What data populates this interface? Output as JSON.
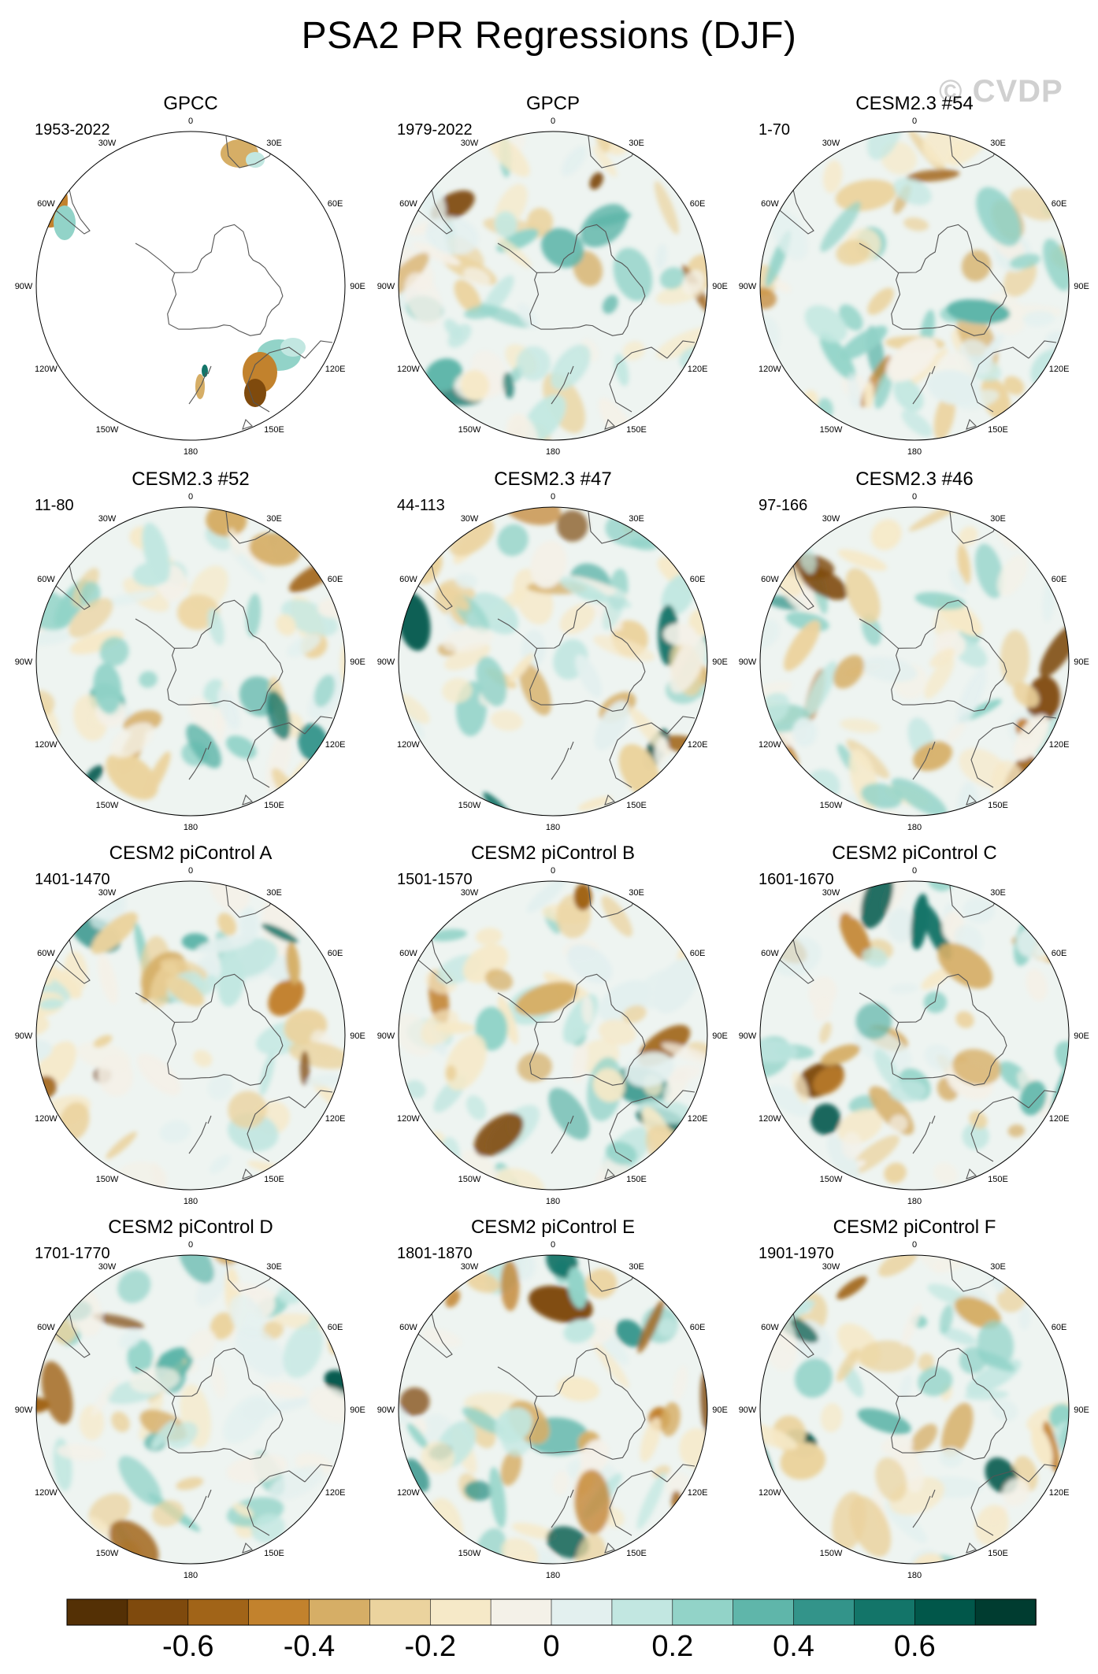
{
  "title": "PSA2 PR Regressions (DJF)",
  "watermark": "© CVDP",
  "lon_labels": [
    "0",
    "30E",
    "60E",
    "90E",
    "120E",
    "150E",
    "180",
    "150W",
    "120W",
    "90W",
    "60W",
    "30W"
  ],
  "panels": [
    {
      "title": "GPCC",
      "years": "1953-2022",
      "mode": "land"
    },
    {
      "title": "GPCP",
      "years": "1979-2022",
      "mode": "full"
    },
    {
      "title": "CESM2.3 #54",
      "years": "1-70",
      "mode": "full"
    },
    {
      "title": "CESM2.3 #52",
      "years": "11-80",
      "mode": "full"
    },
    {
      "title": "CESM2.3 #47",
      "years": "44-113",
      "mode": "full"
    },
    {
      "title": "CESM2.3 #46",
      "years": "97-166",
      "mode": "full"
    },
    {
      "title": "CESM2 piControl A",
      "years": "1401-1470",
      "mode": "full"
    },
    {
      "title": "CESM2 piControl B",
      "years": "1501-1570",
      "mode": "full"
    },
    {
      "title": "CESM2 piControl C",
      "years": "1601-1670",
      "mode": "full"
    },
    {
      "title": "CESM2 piControl D",
      "years": "1701-1770",
      "mode": "full"
    },
    {
      "title": "CESM2 piControl E",
      "years": "1801-1870",
      "mode": "full"
    },
    {
      "title": "CESM2 piControl F",
      "years": "1901-1970",
      "mode": "full"
    }
  ],
  "colorbar": {
    "colors": [
      "#543005",
      "#7f4a0d",
      "#a16418",
      "#c2822d",
      "#d6ae66",
      "#ebd39e",
      "#f6e9c8",
      "#f4f1e8",
      "#e3f0ef",
      "#c2e7e1",
      "#92d3c8",
      "#5fb6aa",
      "#33948a",
      "#137569",
      "#01574a",
      "#003c30"
    ],
    "tick_labels": [
      "-0.6",
      "-0.4",
      "-0.2",
      "0",
      "0.2",
      "0.4",
      "0.6"
    ]
  }
}
